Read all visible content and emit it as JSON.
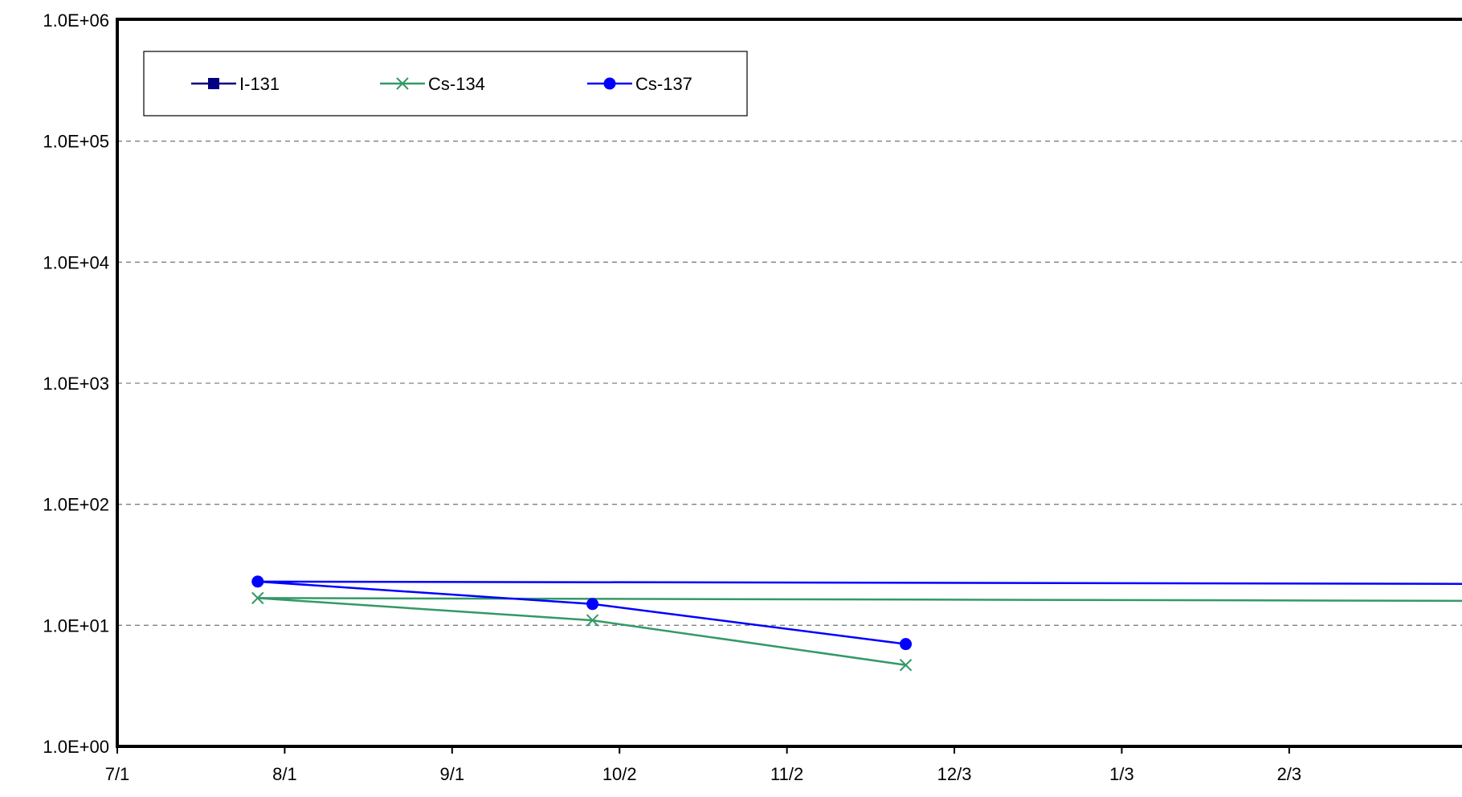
{
  "chart_data": {
    "type": "line",
    "title": "",
    "xlabel": "",
    "ylabel": "",
    "y_scale": "log",
    "ylim": [
      1,
      1000000
    ],
    "y_ticks": [
      1,
      10,
      100,
      1000,
      10000,
      100000,
      1000000
    ],
    "y_tick_labels": [
      "1.0E+00",
      "1.0E+01",
      "1.0E+02",
      "1.0E+03",
      "1.0E+04",
      "1.0E+05",
      "1.0E+06"
    ],
    "xlim": [
      "07-01",
      "03-06"
    ],
    "x_ticks": [
      "07-01",
      "08-01",
      "09-01",
      "10-02",
      "11-02",
      "12-03",
      "01-03",
      "02-03"
    ],
    "x_tick_labels": [
      "7/1",
      "8/1",
      "9/1",
      "10/2",
      "11/2",
      "12/3",
      "1/3",
      "2/3"
    ],
    "grid": "horizontal dashed at each y tick",
    "legend_position": "top-left",
    "series": [
      {
        "name": "I-131",
        "color": "#000080",
        "marker": "square",
        "points": []
      },
      {
        "name": "Cs-134",
        "color": "#339966",
        "marker": "x",
        "points": [
          {
            "x": "06-30",
            "y": 15.5
          },
          {
            "x": "07-27",
            "y": 16.8
          },
          {
            "x": "09-27",
            "y": 11.0
          },
          {
            "x": "11-24",
            "y": 4.7
          }
        ]
      },
      {
        "name": "Cs-137",
        "color": "#0000FF",
        "marker": "circle",
        "points": [
          {
            "x": "06-30",
            "y": 21.5
          },
          {
            "x": "07-27",
            "y": 23.0
          },
          {
            "x": "09-27",
            "y": 15.0
          },
          {
            "x": "11-24",
            "y": 7.0
          }
        ]
      }
    ]
  }
}
